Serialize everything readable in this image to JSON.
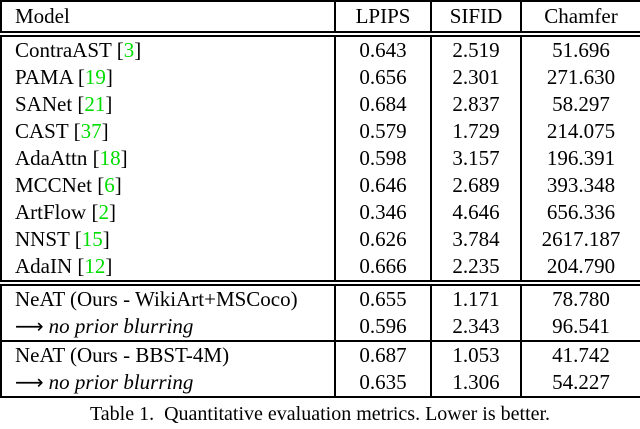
{
  "table": {
    "columns": [
      {
        "key": "model",
        "label": "Model"
      },
      {
        "key": "lpips",
        "label": "LPIPS"
      },
      {
        "key": "sifid",
        "label": "SIFID"
      },
      {
        "key": "chamfer",
        "label": "Chamfer"
      }
    ],
    "cite_color": "#00dd00",
    "sections": [
      {
        "divider_above": "double",
        "rows": [
          {
            "model": "ContraAST",
            "cite": "3",
            "lpips": "0.643",
            "sifid": "2.519",
            "chamfer": "51.696"
          },
          {
            "model": "PAMA",
            "cite": "19",
            "lpips": "0.656",
            "sifid": "2.301",
            "chamfer": "271.630"
          },
          {
            "model": "SANet",
            "cite": "21",
            "lpips": "0.684",
            "sifid": "2.837",
            "chamfer": "58.297"
          },
          {
            "model": "CAST",
            "cite": "37",
            "lpips": "0.579",
            "sifid": "1.729",
            "chamfer": "214.075"
          },
          {
            "model": "AdaAttn",
            "cite": "18",
            "lpips": "0.598",
            "sifid": "3.157",
            "chamfer": "196.391"
          },
          {
            "model": "MCCNet",
            "cite": "6",
            "lpips": "0.646",
            "sifid": "2.689",
            "chamfer": "393.348"
          },
          {
            "model": "ArtFlow",
            "cite": "2",
            "lpips": "0.346",
            "sifid": "4.646",
            "chamfer": "656.336"
          },
          {
            "model": "NNST",
            "cite": "15",
            "lpips": "0.626",
            "sifid": "3.784",
            "chamfer": "2617.187"
          },
          {
            "model": "AdaIN",
            "cite": "12",
            "lpips": "0.666",
            "sifid": "2.235",
            "chamfer": "204.790"
          }
        ]
      },
      {
        "divider_above": "double",
        "rows": [
          {
            "model": "NeAT (Ours - WikiArt+MSCoco)",
            "lpips": "0.655",
            "sifid": "1.171",
            "chamfer": "78.780"
          },
          {
            "model": "no prior blurring",
            "arrow": "⟶",
            "italic": true,
            "lpips": "0.596",
            "sifid": "2.343",
            "chamfer": "96.541"
          }
        ]
      },
      {
        "divider_above": "single",
        "rows": [
          {
            "model": "NeAT (Ours - BBST-4M)",
            "lpips": "0.687",
            "sifid": "1.053",
            "chamfer": "41.742"
          },
          {
            "model": "no prior blurring",
            "arrow": "⟶",
            "italic": true,
            "lpips": "0.635",
            "sifid": "1.306",
            "chamfer": "54.227"
          }
        ]
      }
    ]
  },
  "caption": "Table 1.  Quantitative evaluation metrics. Lower is better."
}
